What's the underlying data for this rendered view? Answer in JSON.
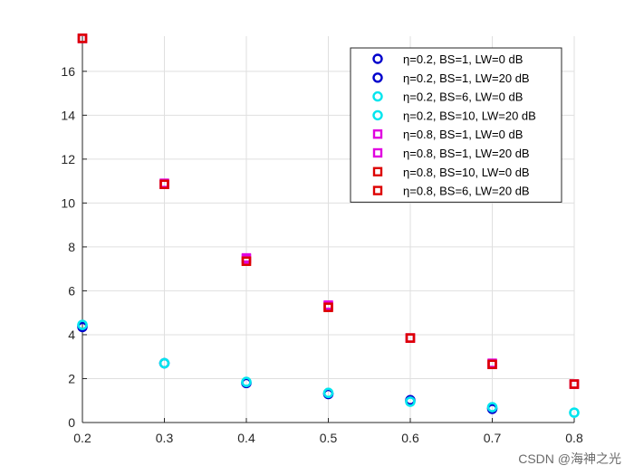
{
  "chart_data": {
    "type": "scatter",
    "title": "",
    "xlabel": "",
    "ylabel": "",
    "xlim": [
      0.2,
      0.8
    ],
    "ylim": [
      0,
      17.6
    ],
    "xticks": [
      0.2,
      0.3,
      0.4,
      0.5,
      0.6,
      0.7,
      0.8
    ],
    "xtick_labels": [
      "0.2",
      "0.3",
      "0.4",
      "0.5",
      "0.6",
      "0.7",
      "0.8"
    ],
    "yticks": [
      0,
      2,
      4,
      6,
      8,
      10,
      12,
      14,
      16
    ],
    "ytick_labels": [
      "0",
      "2",
      "4",
      "6",
      "8",
      "10",
      "12",
      "14",
      "16"
    ],
    "grid": true,
    "legend_position": "top-right",
    "series": [
      {
        "name": "η=0.2, BS=1, LW=0 dB",
        "marker": "circle",
        "color": "#0000cc",
        "x": [
          0.2,
          0.3,
          0.4,
          0.5,
          0.6,
          0.7
        ],
        "y": [
          4.35,
          2.7,
          1.8,
          1.3,
          1.02,
          0.65
        ]
      },
      {
        "name": "η=0.2, BS=1, LW=20 dB",
        "marker": "circle",
        "color": "#0000cc",
        "x": [
          0.2,
          0.3,
          0.4,
          0.5,
          0.6,
          0.7
        ],
        "y": [
          4.4,
          2.7,
          1.8,
          1.3,
          1.0,
          0.62
        ]
      },
      {
        "name": "η=0.2, BS=6, LW=0 dB",
        "marker": "circle",
        "color": "#00e5ee",
        "x": [
          0.2,
          0.3,
          0.4,
          0.5,
          0.6,
          0.7,
          0.8
        ],
        "y": [
          4.45,
          2.7,
          1.85,
          1.35,
          0.95,
          0.7,
          0.45
        ]
      },
      {
        "name": "η=0.2, BS=10, LW=20 dB",
        "marker": "circle",
        "color": "#00e5ee",
        "x": [
          0.2,
          0.3,
          0.4,
          0.5,
          0.6,
          0.7,
          0.8
        ],
        "y": [
          4.45,
          2.7,
          1.85,
          1.35,
          0.95,
          0.7,
          0.45
        ]
      },
      {
        "name": "η=0.8, BS=1, LW=0 dB",
        "marker": "square",
        "color": "#e000e0",
        "x": [
          0.2,
          0.3,
          0.4,
          0.5,
          0.6,
          0.7,
          0.8
        ],
        "y": [
          17.5,
          10.9,
          7.5,
          5.35,
          3.85,
          2.7,
          1.75
        ]
      },
      {
        "name": "η=0.8, BS=1, LW=20 dB",
        "marker": "square",
        "color": "#e000e0",
        "x": [
          0.2,
          0.3,
          0.4,
          0.5,
          0.6,
          0.7,
          0.8
        ],
        "y": [
          17.5,
          10.85,
          7.45,
          5.3,
          3.85,
          2.65,
          1.75
        ]
      },
      {
        "name": "η=0.8, BS=10, LW=0 dB",
        "marker": "square",
        "color": "#dd0000",
        "x": [
          0.2,
          0.3,
          0.4,
          0.5,
          0.6,
          0.7,
          0.8
        ],
        "y": [
          17.5,
          10.85,
          7.35,
          5.25,
          3.85,
          2.65,
          1.75
        ]
      },
      {
        "name": "η=0.8, BS=6, LW=20 dB",
        "marker": "square",
        "color": "#dd0000",
        "x": [
          0.2,
          0.3,
          0.4,
          0.5,
          0.6,
          0.7,
          0.8
        ],
        "y": [
          17.5,
          10.85,
          7.35,
          5.25,
          3.85,
          2.65,
          1.75
        ]
      }
    ]
  },
  "watermark": "CSDN @海神之光",
  "colors": {
    "axis": "#262626",
    "grid": "#dfdfdf",
    "background": "#ffffff"
  }
}
